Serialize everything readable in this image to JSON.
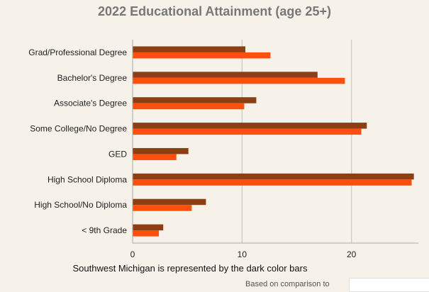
{
  "chart_data": {
    "type": "bar",
    "orientation": "horizontal",
    "title": "2022 Educational Attainment (age 25+)",
    "categories": [
      "Grad/Professional Degree",
      "Bachelor's Degree",
      "Associate's Degree",
      "Some College/No Degree",
      "GED",
      "High School Diploma",
      "High School/No Diploma",
      "< 9th Grade"
    ],
    "series": [
      {
        "values": [
          10.3,
          16.9,
          11.3,
          21.4,
          5.1,
          25.7,
          6.7,
          2.8
        ],
        "color": "#8b3f12"
      },
      {
        "values": [
          12.6,
          19.4,
          10.2,
          20.9,
          4.0,
          25.5,
          5.4,
          2.4
        ],
        "color": "#ff4f0f"
      }
    ],
    "xlim": [
      0,
      26.5
    ],
    "xticks": [
      0,
      10,
      20
    ],
    "grid": true,
    "caption": "Southwest Michigan is represented by the dark color bars",
    "legend_label": "Based on comparison to"
  }
}
